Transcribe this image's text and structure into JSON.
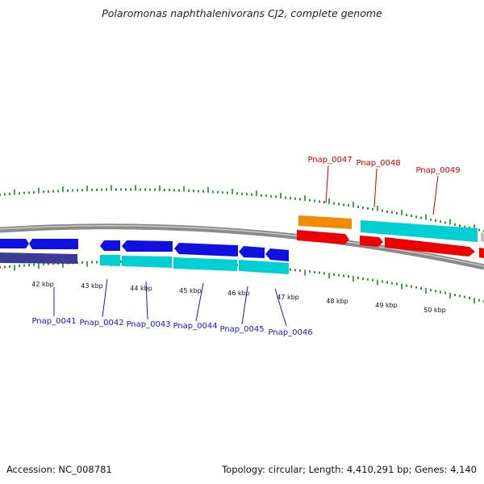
{
  "title": "Polaromonas naphthalenivorans CJ2, complete genome",
  "footer": {
    "accession": "Accession: NC_008781",
    "topology": "Topology: circular; Length: 4,410,291 bp; Genes: 4,140"
  },
  "colors": {
    "backbone": "#8a8a8a",
    "tick": "#1a8a1a",
    "blue_gene": "#1010e0",
    "navy_gene": "#3c3c96",
    "cyan_gene": "#00cfd3",
    "red_gene": "#ee0000",
    "orange_gene": "#f28a00",
    "blue_label": "#1818b0",
    "red_label": "#c80000"
  },
  "kbp_labels": [
    "42 kbp",
    "43 kbp",
    "44 kbp",
    "45 kbp",
    "46 kbp",
    "47 kbp",
    "48 kbp",
    "49 kbp",
    "50 kbp"
  ],
  "gene_labels_blue": [
    "Pnap_0041",
    "Pnap_0042",
    "Pnap_0043",
    "Pnap_0044",
    "Pnap_0045",
    "Pnap_0046"
  ],
  "gene_labels_red": [
    "Pnap_0047",
    "Pnap_0048",
    "Pnap_0049"
  ]
}
